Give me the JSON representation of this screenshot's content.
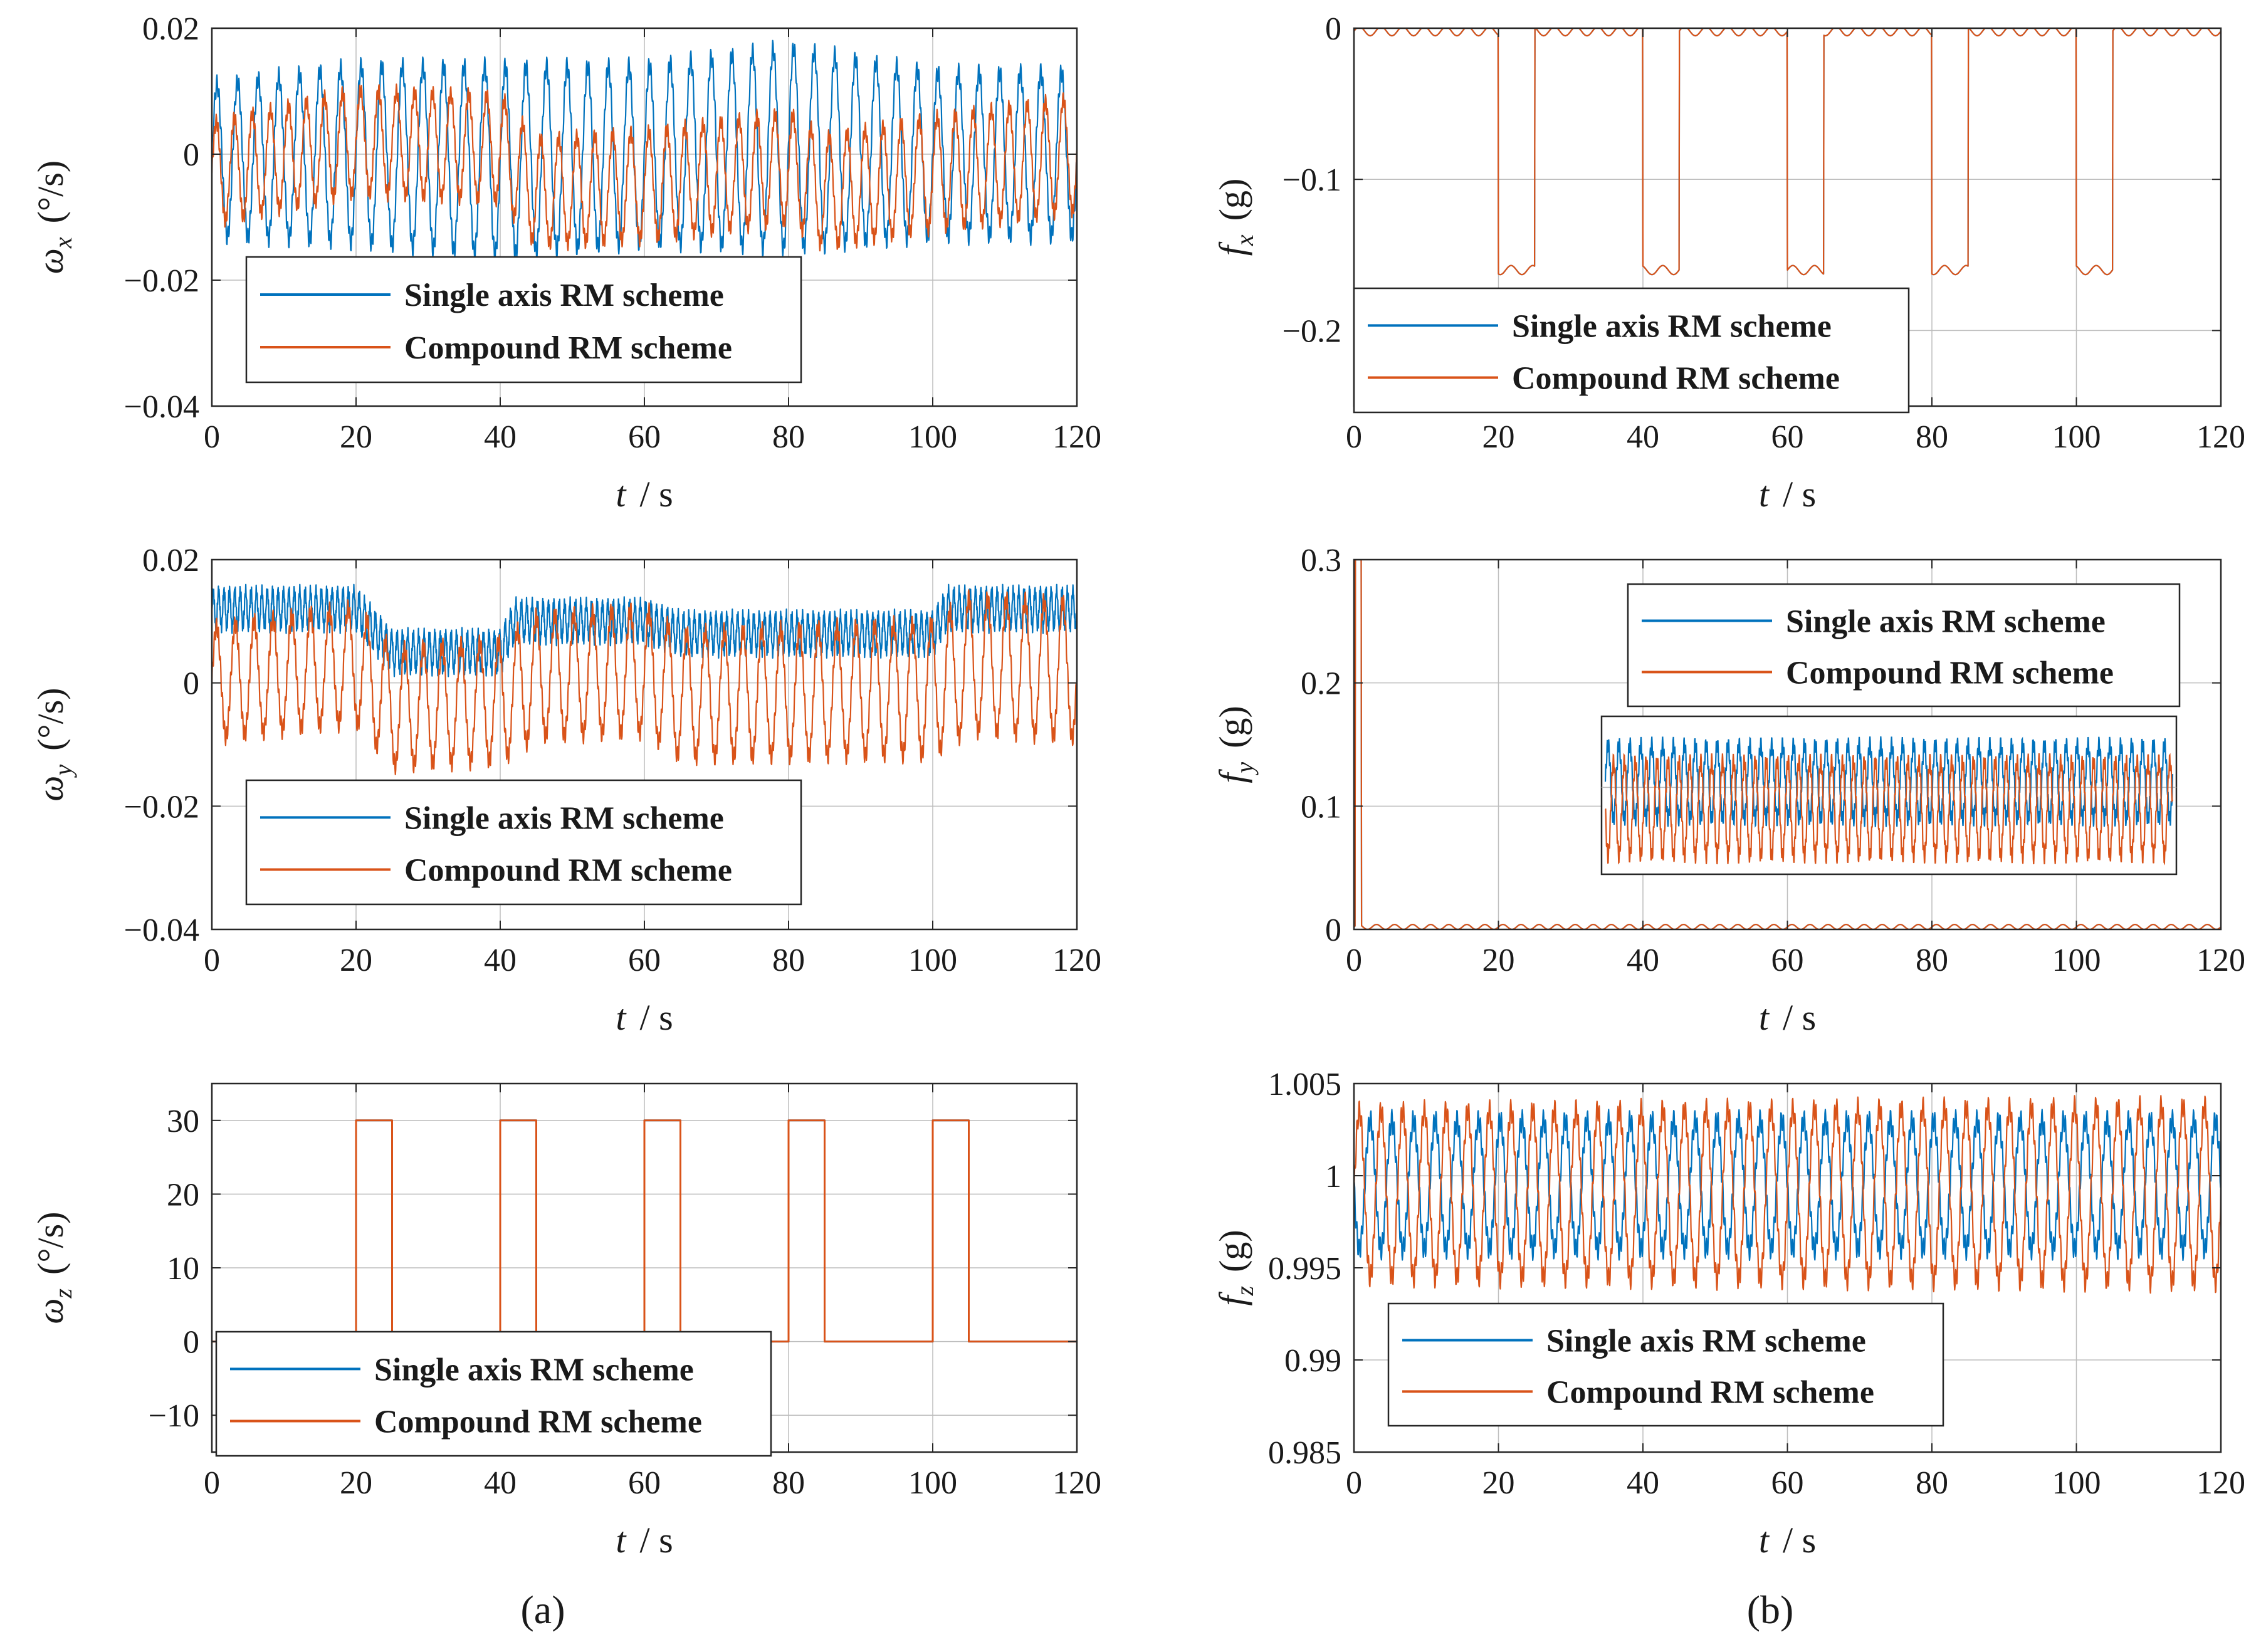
{
  "figure": {
    "panel_labels": [
      "(a)",
      "(b)"
    ]
  },
  "chart_data": [
    {
      "id": "wx",
      "type": "line",
      "column": "a",
      "ylabel": {
        "symbol": "ω",
        "sub": "x",
        "unit": "(°/s)"
      },
      "xlabel": {
        "var": "t",
        "unit": "/ s"
      },
      "xlim": [
        0,
        120
      ],
      "ylim": [
        -0.04,
        0.02
      ],
      "xticks": [
        0,
        20,
        40,
        60,
        80,
        100,
        120
      ],
      "xtick_labels": [
        "0",
        "20",
        "40",
        "60",
        "80",
        "100",
        "120"
      ],
      "yticks": [
        -0.04,
        -0.02,
        0,
        0.02
      ],
      "ytick_labels": [
        "−0.04",
        "−0.02",
        "0",
        "0.02"
      ],
      "grid": true,
      "legend": {
        "position": "bottom-left",
        "entries": [
          "Single axis RM scheme",
          "Compound RM scheme"
        ]
      },
      "series": [
        {
          "name": "Single axis RM scheme",
          "color": "#0072BD",
          "description": "oscillation about 0 with amplitude ±0.012 to ±0.018",
          "band": {
            "center": [
              [
                0,
                -0.001
              ],
              [
                20,
                0.0
              ],
              [
                40,
                -0.001
              ],
              [
                60,
                0.0
              ],
              [
                80,
                0.001
              ],
              [
                100,
                0.0
              ],
              [
                120,
                0.0
              ]
            ],
            "amplitude": [
              [
                0,
                0.012
              ],
              [
                20,
                0.014
              ],
              [
                40,
                0.015
              ],
              [
                60,
                0.014
              ],
              [
                80,
                0.016
              ],
              [
                100,
                0.013
              ],
              [
                120,
                0.013
              ]
            ],
            "cycles": 42,
            "ripple": 0.0015
          }
        },
        {
          "name": "Compound RM scheme",
          "color": "#D95319",
          "description": "oscillation about 0 with slowly varying offset",
          "band": {
            "center": [
              [
                0,
                -0.003
              ],
              [
                20,
                0.002
              ],
              [
                40,
                0.001
              ],
              [
                45,
                -0.006
              ],
              [
                60,
                -0.005
              ],
              [
                80,
                -0.002
              ],
              [
                85,
                -0.006
              ],
              [
                100,
                -0.003
              ],
              [
                120,
                0.0
              ]
            ],
            "amplitude": [
              [
                0,
                0.008
              ],
              [
                120,
                0.009
              ]
            ],
            "cycles": 48,
            "ripple": 0.0012
          }
        }
      ]
    },
    {
      "id": "wy",
      "type": "line",
      "column": "a",
      "ylabel": {
        "symbol": "ω",
        "sub": "y",
        "unit": "(°/s)"
      },
      "xlabel": {
        "var": "t",
        "unit": "/ s"
      },
      "xlim": [
        0,
        120
      ],
      "ylim": [
        -0.04,
        0.02
      ],
      "xticks": [
        0,
        20,
        40,
        60,
        80,
        100,
        120
      ],
      "xtick_labels": [
        "0",
        "20",
        "40",
        "60",
        "80",
        "100",
        "120"
      ],
      "yticks": [
        -0.04,
        -0.02,
        0,
        0.02
      ],
      "ytick_labels": [
        "−0.04",
        "−0.02",
        "0",
        "0.02"
      ],
      "grid": true,
      "legend": {
        "position": "bottom-left",
        "entries": [
          "Single axis RM scheme",
          "Compound RM scheme"
        ]
      },
      "series": [
        {
          "name": "Single axis RM scheme",
          "color": "#0072BD",
          "description": "offset band ~0.012 for 0–20 s, ~0.005 for 25–40 s, ~0.01 for 40–60 s, ~0.008 for 65–100 s, ~0.012 after 100 s",
          "band": {
            "center": [
              [
                0,
                0.012
              ],
              [
                20,
                0.012
              ],
              [
                25,
                0.005
              ],
              [
                40,
                0.005
              ],
              [
                42,
                0.01
              ],
              [
                60,
                0.01
              ],
              [
                65,
                0.008
              ],
              [
                100,
                0.008
              ],
              [
                102,
                0.012
              ],
              [
                120,
                0.012
              ]
            ],
            "amplitude": [
              [
                0,
                0.003
              ],
              [
                120,
                0.003
              ]
            ],
            "cycles": 160,
            "ripple": 0.001
          }
        },
        {
          "name": "Compound RM scheme",
          "color": "#D95319",
          "description": "large oscillation spanning about −0.015 to +0.015",
          "band": {
            "center": [
              [
                0,
                0.0
              ],
              [
                20,
                0.003
              ],
              [
                25,
                -0.004
              ],
              [
                40,
                -0.003
              ],
              [
                45,
                0.001
              ],
              [
                60,
                0.002
              ],
              [
                65,
                -0.002
              ],
              [
                100,
                -0.001
              ],
              [
                105,
                0.003
              ],
              [
                120,
                0.002
              ]
            ],
            "amplitude": [
              [
                0,
                0.009
              ],
              [
                120,
                0.011
              ]
            ],
            "cycles": 46,
            "ripple": 0.0015
          }
        }
      ]
    },
    {
      "id": "wz",
      "type": "line",
      "column": "a",
      "ylabel": {
        "symbol": "ω",
        "sub": "z",
        "unit": "(°/s)"
      },
      "xlabel": {
        "var": "t",
        "unit": "/ s"
      },
      "xlim": [
        0,
        120
      ],
      "ylim": [
        -15,
        35
      ],
      "xticks": [
        0,
        20,
        40,
        60,
        80,
        100,
        120
      ],
      "xtick_labels": [
        "0",
        "20",
        "40",
        "60",
        "80",
        "100",
        "120"
      ],
      "yticks": [
        -10,
        0,
        10,
        20,
        30
      ],
      "ytick_labels": [
        "−10",
        "0",
        "10",
        "20",
        "30"
      ],
      "grid": true,
      "legend": {
        "position": "bottom-left",
        "entries": [
          "Single axis RM scheme",
          "Compound RM scheme"
        ]
      },
      "series": [
        {
          "name": "Single axis RM scheme",
          "color": "#0072BD",
          "description": "rectangular pulses of 30 °/s, overlapped",
          "points": [
            [
              0,
              0
            ],
            [
              20,
              0
            ],
            [
              20,
              30
            ],
            [
              25,
              30
            ],
            [
              25,
              0
            ],
            [
              40,
              0
            ],
            [
              40,
              30
            ],
            [
              45,
              30
            ],
            [
              45,
              0
            ],
            [
              60,
              0
            ],
            [
              60,
              30
            ],
            [
              65,
              30
            ],
            [
              65,
              0
            ],
            [
              80,
              0
            ],
            [
              80,
              30
            ],
            [
              85,
              30
            ],
            [
              85,
              0
            ],
            [
              100,
              0
            ],
            [
              100,
              30
            ],
            [
              105,
              30
            ],
            [
              105,
              0
            ],
            [
              120,
              0
            ]
          ]
        },
        {
          "name": "Compound RM scheme",
          "color": "#D95319",
          "description": "rectangular pulses of 30 °/s every 20 s, 5 s wide",
          "points": [
            [
              0,
              0
            ],
            [
              20,
              0
            ],
            [
              20,
              30
            ],
            [
              25,
              30
            ],
            [
              25,
              0
            ],
            [
              40,
              0
            ],
            [
              40,
              30
            ],
            [
              45,
              30
            ],
            [
              45,
              0
            ],
            [
              60,
              0
            ],
            [
              60,
              30
            ],
            [
              65,
              30
            ],
            [
              65,
              0
            ],
            [
              80,
              0
            ],
            [
              80,
              30
            ],
            [
              85,
              30
            ],
            [
              85,
              0
            ],
            [
              100,
              0
            ],
            [
              100,
              30
            ],
            [
              105,
              30
            ],
            [
              105,
              0
            ],
            [
              120,
              0
            ]
          ]
        }
      ]
    },
    {
      "id": "fx",
      "type": "line",
      "column": "b",
      "ylabel": {
        "symbol": "f",
        "sub": "x",
        "unit": "(g)"
      },
      "xlabel": {
        "var": "t",
        "unit": "/ s"
      },
      "xlim": [
        0,
        120
      ],
      "ylim": [
        -0.25,
        0.0
      ],
      "xticks": [
        0,
        20,
        40,
        60,
        80,
        100,
        120
      ],
      "xtick_labels": [
        "0",
        "20",
        "40",
        "60",
        "80",
        "100",
        "120"
      ],
      "yticks": [
        -0.2,
        -0.1,
        0
      ],
      "ytick_labels": [
        "−0.2",
        "−0.1",
        "0"
      ],
      "grid": true,
      "legend": {
        "position": "bottom-left",
        "entries": [
          "Single axis RM scheme",
          "Compound RM scheme"
        ]
      },
      "series": [
        {
          "name": "Single axis RM scheme",
          "color": "#0072BD",
          "description": "near 0, drops to about −0.16 g during rotation intervals",
          "pulses": {
            "base": -0.002,
            "level": -0.16,
            "intervals": [
              [
                20,
                25
              ],
              [
                40,
                45
              ],
              [
                60,
                65
              ],
              [
                80,
                85
              ],
              [
                100,
                105
              ]
            ],
            "noise": 0.003,
            "cycles": 40
          }
        },
        {
          "name": "Compound RM scheme",
          "color": "#D95319",
          "description": "near 0, drops to about −0.16 g during rotation intervals",
          "pulses": {
            "base": -0.002,
            "level": -0.16,
            "intervals": [
              [
                20,
                25
              ],
              [
                40,
                45
              ],
              [
                60,
                65
              ],
              [
                80,
                85
              ],
              [
                100,
                105
              ]
            ],
            "noise": 0.003,
            "cycles": 40
          }
        }
      ]
    },
    {
      "id": "fy",
      "type": "line",
      "column": "b",
      "ylabel": {
        "symbol": "f",
        "sub": "y",
        "unit": "(g)"
      },
      "xlabel": {
        "var": "t",
        "unit": "/ s"
      },
      "xlim": [
        0,
        120
      ],
      "ylim": [
        0,
        0.3
      ],
      "xticks": [
        0,
        20,
        40,
        60,
        80,
        100,
        120
      ],
      "xtick_labels": [
        "0",
        "20",
        "40",
        "60",
        "80",
        "100",
        "120"
      ],
      "yticks": [
        0,
        0.1,
        0.2,
        0.3
      ],
      "ytick_labels": [
        "0",
        "0.1",
        "0.2",
        "0.3"
      ],
      "grid": true,
      "legend": {
        "position": "top-right",
        "entries": [
          "Single axis RM scheme",
          "Compound RM scheme"
        ]
      },
      "series": [
        {
          "name": "Single axis RM scheme",
          "color": "#0072BD",
          "description": "initial spike to 0.3 g near t≈1 s then near 0",
          "spike": {
            "t": 1,
            "peak": 0.3,
            "base": 0.002,
            "noise": 0.002,
            "cycles": 48
          }
        },
        {
          "name": "Compound RM scheme",
          "color": "#D95319",
          "description": "initial spike to 0.3 g near t≈1 s then near 0",
          "spike": {
            "t": 1,
            "peak": 0.3,
            "base": 0.002,
            "noise": 0.002,
            "cycles": 48
          }
        }
      ],
      "inset": {
        "description": "zoomed view of steady-state oscillation",
        "xlim": [
          0,
          120
        ],
        "ylim": [
          -1,
          1
        ],
        "series": [
          {
            "name": "Single axis RM scheme",
            "color": "#0072BD",
            "center": 0.2,
            "amplitude": 0.55,
            "cycles": 52
          },
          {
            "name": "Compound RM scheme",
            "color": "#D95319",
            "center": -0.2,
            "amplitude": 0.7,
            "cycles": 52
          }
        ]
      }
    },
    {
      "id": "fz",
      "type": "line",
      "column": "b",
      "ylabel": {
        "symbol": "f",
        "sub": "z",
        "unit": "(g)"
      },
      "xlabel": {
        "var": "t",
        "unit": "/ s"
      },
      "xlim": [
        0,
        120
      ],
      "ylim": [
        0.985,
        1.005
      ],
      "xticks": [
        0,
        20,
        40,
        60,
        80,
        100,
        120
      ],
      "xtick_labels": [
        "0",
        "20",
        "40",
        "60",
        "80",
        "100",
        "120"
      ],
      "yticks": [
        0.985,
        0.99,
        0.995,
        1.0,
        1.005
      ],
      "ytick_labels": [
        "0.985",
        "0.99",
        "0.995",
        "1",
        "1.005"
      ],
      "grid": true,
      "legend": {
        "position": "bottom-left",
        "entries": [
          "Single axis RM scheme",
          "Compound RM scheme"
        ]
      },
      "series": [
        {
          "name": "Single axis RM scheme",
          "color": "#0072BD",
          "description": "oscillation about 0.9995 g with amplitude ~0.004",
          "band": {
            "center": [
              [
                0,
                0.9995
              ],
              [
                120,
                0.9995
              ]
            ],
            "amplitude": [
              [
                0,
                0.0035
              ],
              [
                120,
                0.0035
              ]
            ],
            "cycles": 40,
            "ripple": 0.0006,
            "phase": 3.14
          }
        },
        {
          "name": "Compound RM scheme",
          "color": "#D95319",
          "description": "oscillation about 0.999 g with amplitude ~0.005",
          "band": {
            "center": [
              [
                0,
                0.999
              ],
              [
                120,
                0.999
              ]
            ],
            "amplitude": [
              [
                0,
                0.0045
              ],
              [
                120,
                0.0048
              ]
            ],
            "cycles": 40,
            "ripple": 0.0006,
            "phase": 0
          }
        }
      ]
    }
  ]
}
